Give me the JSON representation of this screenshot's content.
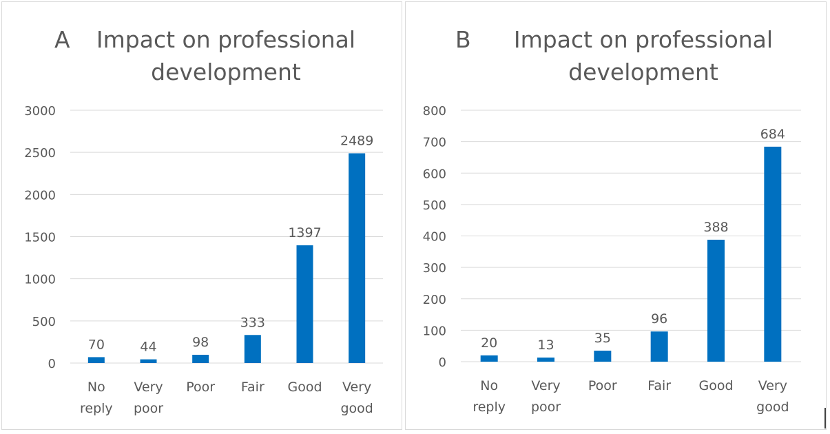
{
  "chart_data": [
    {
      "type": "bar",
      "panel_letter": "A",
      "title_line1": "Impact  on professional",
      "title_line2": "development",
      "categories": [
        [
          "No",
          "reply"
        ],
        [
          "Very",
          "poor"
        ],
        [
          "Poor"
        ],
        [
          "Fair"
        ],
        [
          "Good"
        ],
        [
          "Very",
          "good"
        ]
      ],
      "values": [
        70,
        44,
        98,
        333,
        1397,
        2489
      ],
      "data_labels": [
        "70",
        "44",
        "98",
        "333",
        "1397",
        "2489"
      ],
      "yticks": [
        0,
        500,
        1000,
        1500,
        2000,
        2500,
        3000
      ],
      "ylim": [
        0,
        3000
      ],
      "grid": true,
      "bar_color": "#0070C0"
    },
    {
      "type": "bar",
      "panel_letter": "B",
      "title_line1": "Impact  on professional",
      "title_line2": "development",
      "categories": [
        [
          "No",
          "reply"
        ],
        [
          "Very",
          "poor"
        ],
        [
          "Poor"
        ],
        [
          "Fair"
        ],
        [
          "Good"
        ],
        [
          "Very",
          "good"
        ]
      ],
      "values": [
        20,
        13,
        35,
        96,
        388,
        684
      ],
      "data_labels": [
        "20",
        "13",
        "35",
        "96",
        "388",
        "684"
      ],
      "yticks": [
        0,
        100,
        200,
        300,
        400,
        500,
        600,
        700,
        800
      ],
      "ylim": [
        0,
        800
      ],
      "grid": true,
      "bar_color": "#0070C0"
    }
  ]
}
